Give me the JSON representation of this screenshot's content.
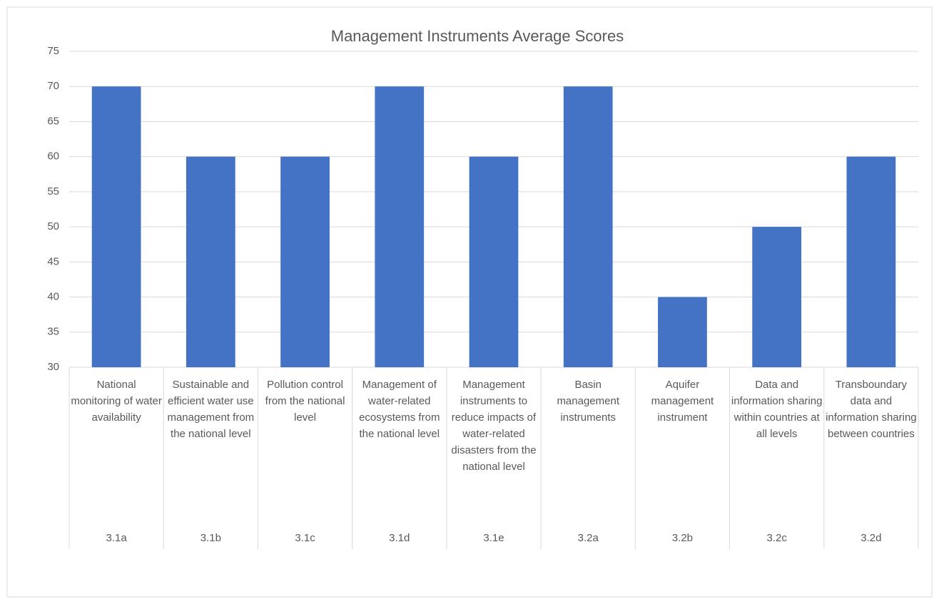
{
  "chart_data": {
    "type": "bar",
    "title": "Management Instruments Average Scores",
    "categories": [
      "National monitoring of water availability",
      "Sustainable and efficient water use management from the national level",
      "Pollution control from the national level",
      "Management of water-related ecosystems from the national level",
      "Management instruments to reduce impacts of water-related disasters from the national level",
      "Basin management instruments",
      "Aquifer management instrument",
      "Data and information sharing within countries at all levels",
      "Transboundary data and information sharing between countries"
    ],
    "category_codes": [
      "3.1a",
      "3.1b",
      "3.1c",
      "3.1d",
      "3.1e",
      "3.2a",
      "3.2b",
      "3.2c",
      "3.2d"
    ],
    "values": [
      70,
      60,
      60,
      70,
      60,
      70,
      40,
      50,
      60
    ],
    "color": "#4472c4",
    "ylim": [
      30,
      75
    ],
    "yticks": [
      30,
      35,
      40,
      45,
      50,
      55,
      60,
      65,
      70,
      75
    ],
    "grid": true
  }
}
